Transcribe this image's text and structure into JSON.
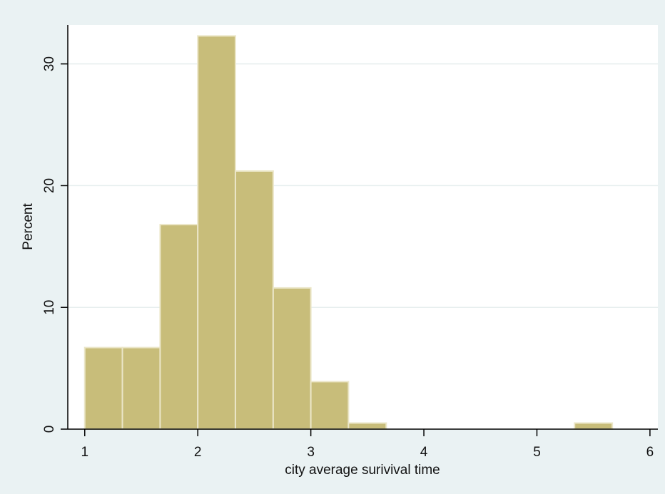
{
  "chart_data": {
    "type": "bar",
    "subtype": "histogram",
    "xlabel": "city average surivival time",
    "ylabel": "Percent",
    "xlim": [
      0.85,
      6.07
    ],
    "ylim": [
      0,
      33.2
    ],
    "x_ticks": [
      1,
      2,
      3,
      4,
      5,
      6
    ],
    "y_ticks": [
      0,
      10,
      20,
      30
    ],
    "grid": "horizontal",
    "bin_width": 0.333,
    "bins": [
      {
        "start": 1.0,
        "end": 1.333,
        "value": 6.7
      },
      {
        "start": 1.333,
        "end": 1.667,
        "value": 6.7
      },
      {
        "start": 1.667,
        "end": 2.0,
        "value": 16.8
      },
      {
        "start": 2.0,
        "end": 2.333,
        "value": 32.3
      },
      {
        "start": 2.333,
        "end": 2.667,
        "value": 21.2
      },
      {
        "start": 2.667,
        "end": 3.0,
        "value": 11.6
      },
      {
        "start": 3.0,
        "end": 3.333,
        "value": 3.9
      },
      {
        "start": 3.333,
        "end": 3.667,
        "value": 0.5
      },
      {
        "start": 5.333,
        "end": 5.667,
        "value": 0.5
      }
    ],
    "colors": {
      "bar_fill": "#c8bd7a",
      "bar_edge": "#ebe6c8",
      "plot_background": "#ffffff",
      "outer_background": "#eaf2f3",
      "grid": "#e6eeee",
      "axis": "#000000"
    }
  }
}
